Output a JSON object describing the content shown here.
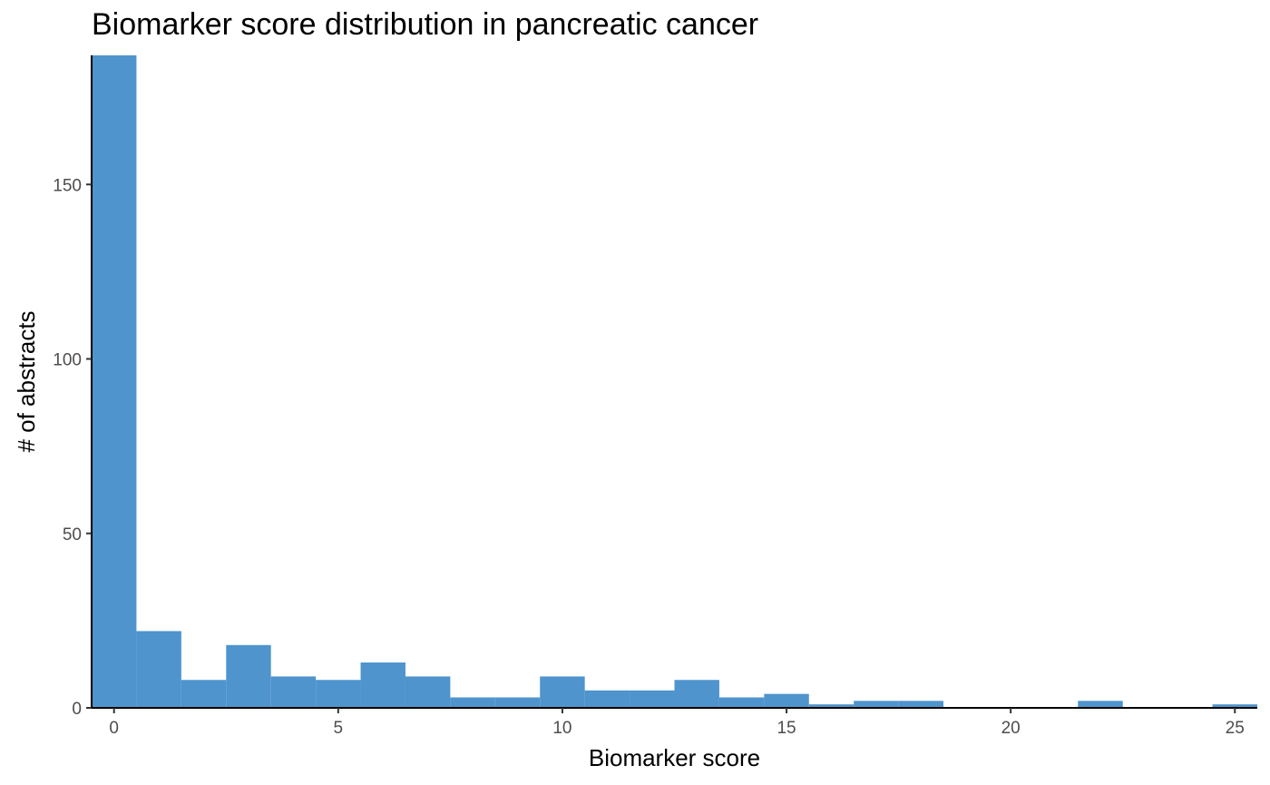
{
  "chart_data": {
    "type": "bar",
    "title": "Biomarker score distribution in pancreatic cancer",
    "xlabel": "Biomarker score",
    "ylabel": "# of abstracts",
    "bar_color": "#4F94CD",
    "bin_width": 1,
    "xlim": [
      -0.5,
      25.5
    ],
    "ylim": [
      0,
      187
    ],
    "x_ticks": [
      0,
      5,
      10,
      15,
      20,
      25
    ],
    "y_ticks": [
      0,
      50,
      100,
      150
    ],
    "grid": false,
    "x": [
      0,
      1,
      2,
      3,
      4,
      5,
      6,
      7,
      8,
      9,
      10,
      11,
      12,
      13,
      14,
      15,
      16,
      17,
      18,
      19,
      20,
      21,
      22,
      23,
      24,
      25
    ],
    "values": [
      187,
      22,
      8,
      18,
      9,
      8,
      13,
      9,
      3,
      3,
      9,
      5,
      5,
      8,
      3,
      4,
      1,
      2,
      2,
      0,
      0,
      0,
      2,
      0,
      0,
      1
    ]
  }
}
